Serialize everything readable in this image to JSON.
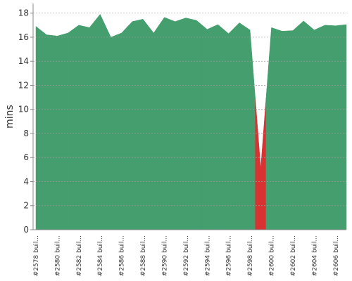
{
  "chart_data": {
    "type": "area",
    "y_label": "mins",
    "categories": [
      "#2578 buil...",
      null,
      "#2580 buil...",
      null,
      "#2582 buil...",
      null,
      "#2584 buil...",
      null,
      "#2586 buil...",
      null,
      "#2588 buil...",
      null,
      "#2590 buil...",
      null,
      "#2592 buil...",
      null,
      "#2594 buil...",
      null,
      "#2596 buil...",
      null,
      "#2598 buil...",
      null,
      "#2600 buil...",
      null,
      "#2602 buil...",
      null,
      "#2604 buil...",
      null,
      "#2606 buil...",
      null
    ],
    "values": [
      16.9,
      16.2,
      16.1,
      16.35,
      17.0,
      16.8,
      17.9,
      16.0,
      16.35,
      17.3,
      17.5,
      16.35,
      17.65,
      17.3,
      17.6,
      17.4,
      16.65,
      17.05,
      16.3,
      17.2,
      16.6,
      5.1,
      16.8,
      16.5,
      16.55,
      17.35,
      16.6,
      17.0,
      16.95,
      17.05
    ],
    "point_colors": [
      "#459e6e",
      "#459e6e",
      "#459e6e",
      "#459e6e",
      "#459e6e",
      "#459e6e",
      "#459e6e",
      "#459e6e",
      "#459e6e",
      "#459e6e",
      "#459e6e",
      "#459e6e",
      "#459e6e",
      "#459e6e",
      "#459e6e",
      "#459e6e",
      "#459e6e",
      "#459e6e",
      "#459e6e",
      "#459e6e",
      "#459e6e",
      "#d93232",
      "#459e6e",
      "#459e6e",
      "#459e6e",
      "#459e6e",
      "#459e6e",
      "#459e6e",
      "#459e6e",
      "#459e6e"
    ],
    "ylim": [
      0,
      18.8
    ],
    "yticks": [
      0,
      2,
      4,
      6,
      8,
      10,
      12,
      14,
      16,
      18
    ],
    "grid": true
  }
}
